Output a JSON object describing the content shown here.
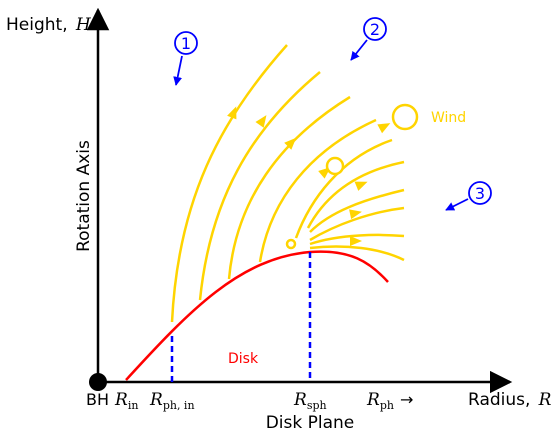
{
  "colors": {
    "axis": "#000000",
    "disk": "#ff0000",
    "wind": "#ffd400",
    "marker": "#0000ff",
    "guide": "#0000ff"
  },
  "labels": {
    "height_word": "Height,",
    "height_symbol": "H",
    "rotation_axis": "Rotation Axis",
    "radius_word": "Radius,",
    "radius_symbol": "R",
    "disk_plane": "Disk Plane",
    "disk": "Disk",
    "wind": "Wind",
    "bh": "BH",
    "r_in_main": "R",
    "r_in_sub": "in",
    "r_ph_in_main": "R",
    "r_ph_in_sub": "ph, in",
    "r_sph_main": "R",
    "r_sph_sub": "sph",
    "r_ph_main": "R",
    "r_ph_sub": "ph",
    "r_ph_arrow": "→"
  },
  "markers": [
    {
      "number": "1"
    },
    {
      "number": "2"
    },
    {
      "number": "3"
    }
  ]
}
